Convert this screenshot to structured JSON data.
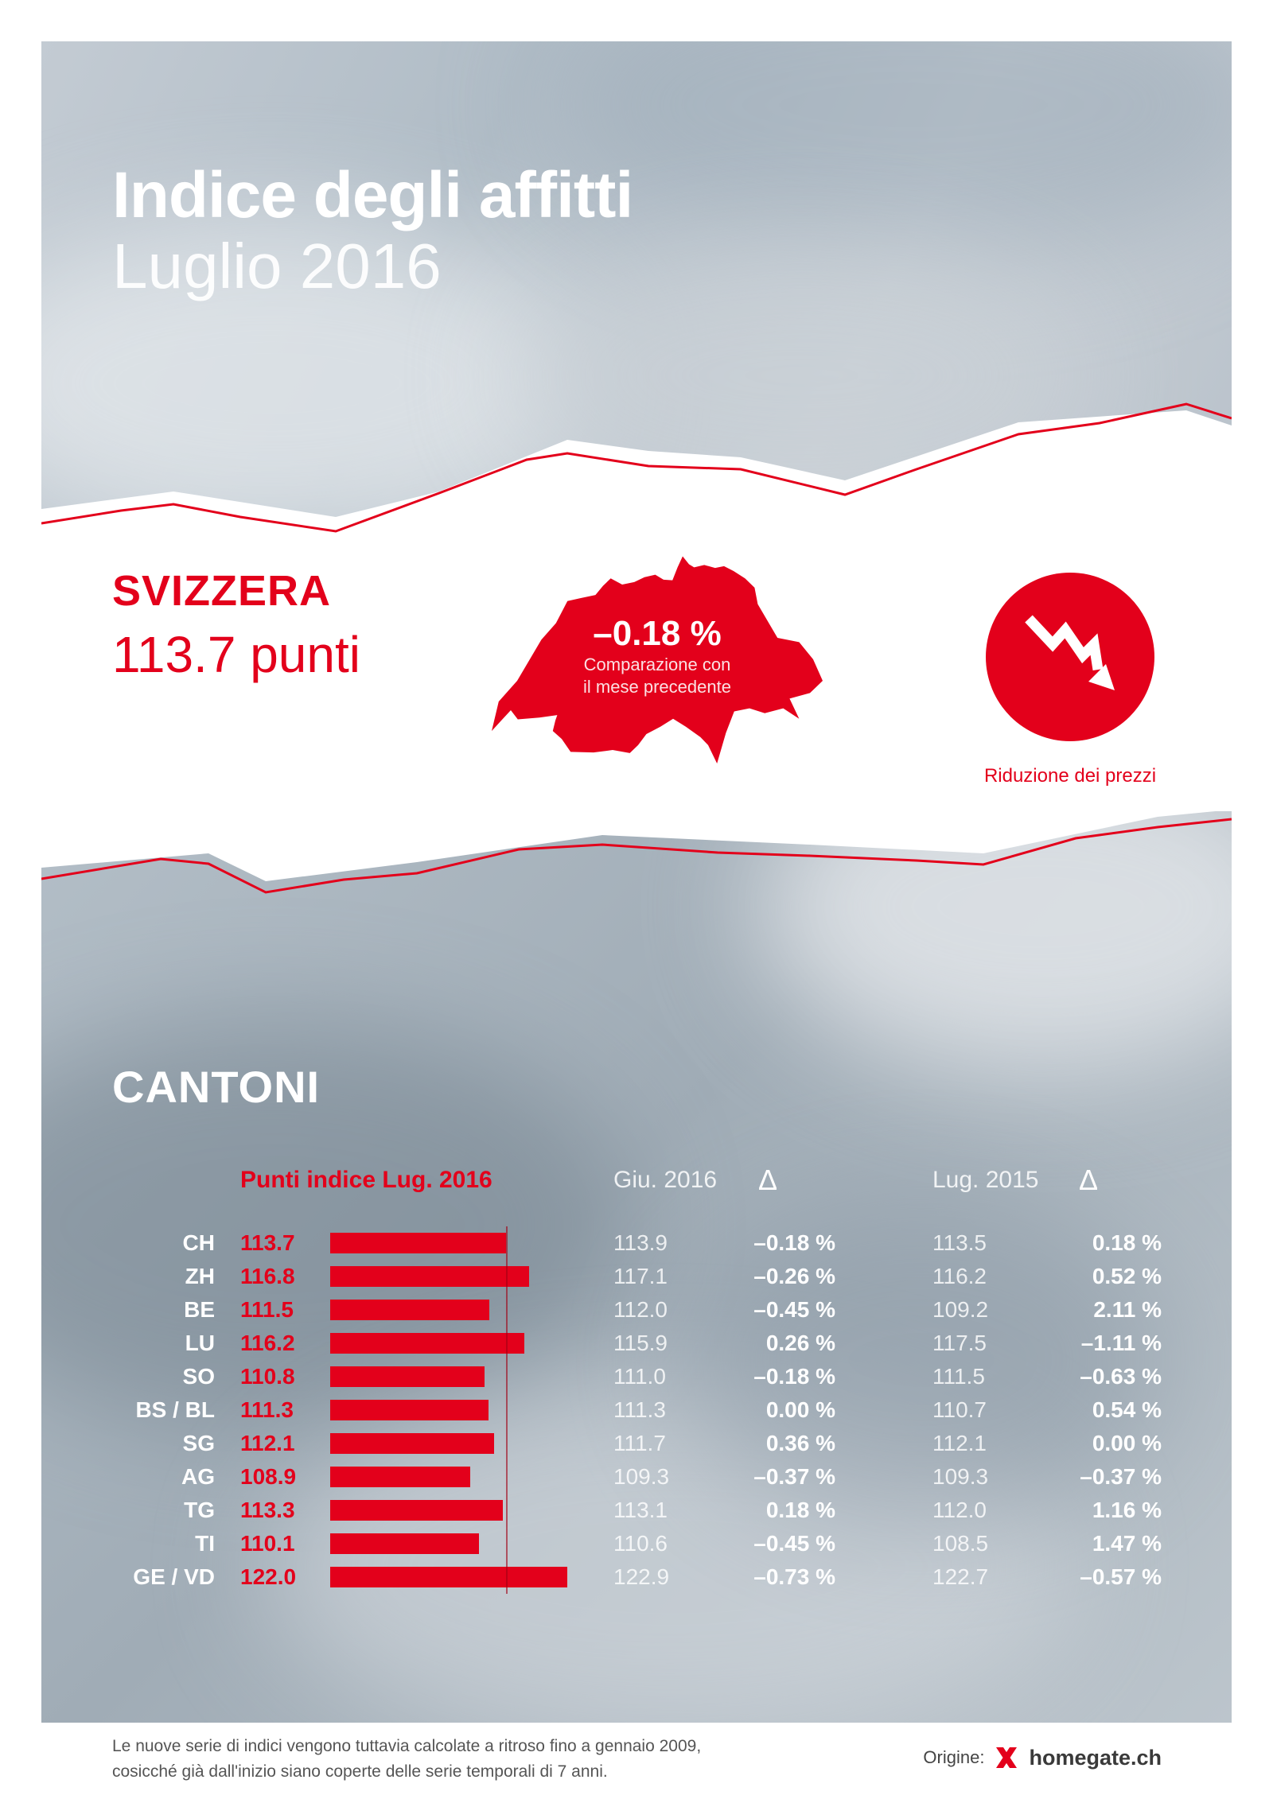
{
  "colors": {
    "accent": "#e3001b"
  },
  "header": {
    "title_line1": "Indice degli affitti",
    "title_line2": "Luglio 2016"
  },
  "summary": {
    "region_label": "SVIZZERA",
    "points_value": "113.7 punti",
    "change_value": "–0.18 %",
    "change_caption_line1": "Comparazione con",
    "change_caption_line2": "il mese precedente",
    "trend_caption": "Riduzione dei prezzi"
  },
  "cantons_section": {
    "heading": "CANTONI",
    "col_index_header": "Punti indice Lug. 2016",
    "col_prev_month_header": "Giu. 2016",
    "col_prev_year_header": "Lug. 2015",
    "delta_symbol": "Δ"
  },
  "chart_data": {
    "type": "bar",
    "orientation": "horizontal",
    "title": "Punti indice Lug. 2016",
    "categories": [
      "CH",
      "ZH",
      "BE",
      "LU",
      "SO",
      "BS / BL",
      "SG",
      "AG",
      "TG",
      "TI",
      "GE / VD"
    ],
    "series": [
      {
        "name": "Punti indice Lug. 2016",
        "values": [
          113.7,
          116.8,
          111.5,
          116.2,
          110.8,
          111.3,
          112.1,
          108.9,
          113.3,
          110.1,
          122.0
        ]
      },
      {
        "name": "Giu. 2016",
        "values": [
          113.9,
          117.1,
          112.0,
          115.9,
          111.0,
          111.3,
          111.7,
          109.3,
          113.1,
          110.6,
          122.9
        ]
      },
      {
        "name": "Δ vs. Giu. 2016",
        "values": [
          "–0.18 %",
          "–0.26 %",
          "–0.45 %",
          "0.26 %",
          "–0.18 %",
          "0.00 %",
          "0.36 %",
          "–0.37 %",
          "0.18 %",
          "–0.45 %",
          "–0.73 %"
        ]
      },
      {
        "name": "Lug. 2015",
        "values": [
          113.5,
          116.2,
          109.2,
          117.5,
          111.5,
          110.7,
          112.1,
          109.3,
          112.0,
          108.5,
          122.7
        ]
      },
      {
        "name": "Δ vs. Lug. 2015",
        "values": [
          "0.18 %",
          "0.52 %",
          "2.11 %",
          "–1.11 %",
          "–0.63 %",
          "0.54 %",
          "0.00 %",
          "–0.37 %",
          "1.16 %",
          "1.47 %",
          "–0.57 %"
        ]
      }
    ],
    "baseline_value": 113.7,
    "value_axis_range": [
      90,
      125
    ],
    "legend_position": "none",
    "grid": false
  },
  "footer": {
    "note_line1": "Le nuove serie di indici vengono tuttavia calcolate a ritroso fino a gennaio 2009,",
    "note_line2": "cosicché già dall'inizio siano coperte delle serie temporali di 7 anni.",
    "origin_label": "Origine:",
    "brand": "homegate.ch"
  }
}
